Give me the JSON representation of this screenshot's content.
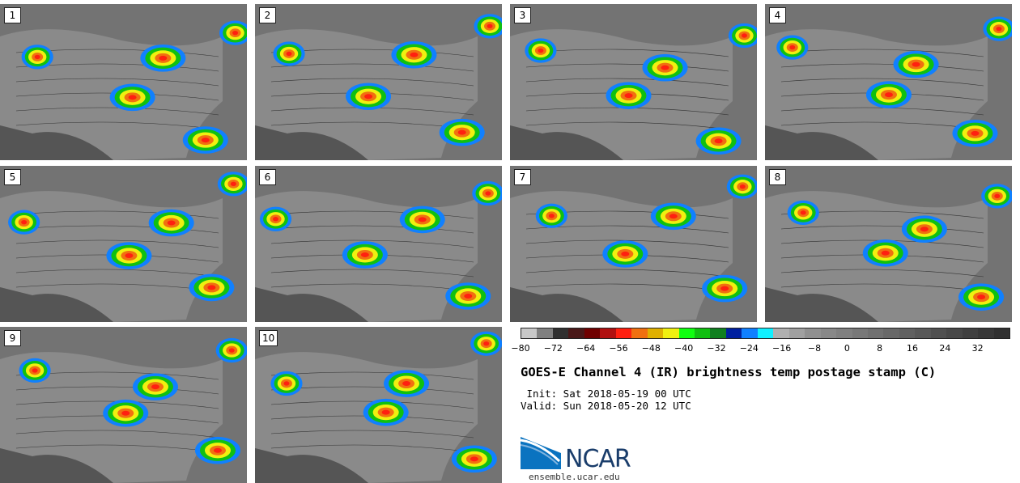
{
  "panels": [
    {
      "label": "1"
    },
    {
      "label": "2"
    },
    {
      "label": "3"
    },
    {
      "label": "4"
    },
    {
      "label": "5"
    },
    {
      "label": "6"
    },
    {
      "label": "7"
    },
    {
      "label": "8"
    },
    {
      "label": "9"
    },
    {
      "label": "10"
    }
  ],
  "colorbar": {
    "colors": [
      "#c8c8c8",
      "#808080",
      "#303030",
      "#4a1818",
      "#700000",
      "#b01010",
      "#ff2010",
      "#f07010",
      "#e0b000",
      "#f0f010",
      "#10ff10",
      "#10c010",
      "#108020",
      "#0020a0",
      "#1080ff",
      "#10f0ff",
      "#b0b0b0",
      "#a0a0a0",
      "#909090",
      "#888888",
      "#808080",
      "#787878",
      "#707070",
      "#686868",
      "#606060",
      "#585858",
      "#505050",
      "#484848",
      "#404040",
      "#383838",
      "#303030"
    ],
    "tick_labels": [
      "−80",
      "−72",
      "−64",
      "−56",
      "−48",
      "−40",
      "−32",
      "−24",
      "−16",
      "−8",
      "0",
      "8",
      "16",
      "24",
      "32"
    ],
    "tick_values": [
      -80,
      -72,
      -64,
      -56,
      -48,
      -40,
      -32,
      -24,
      -16,
      -8,
      0,
      8,
      16,
      24,
      32
    ],
    "range": [
      -80,
      40
    ]
  },
  "title": "GOES-E Channel 4 (IR) brightness temp postage stamp (C)",
  "init": " Init: Sat 2018-05-19 00 UTC",
  "valid": "Valid: Sun 2018-05-20 12 UTC",
  "logo": {
    "text": "NCAR",
    "url": "ensemble.ucar.edu",
    "color": "#1a3d6b"
  }
}
